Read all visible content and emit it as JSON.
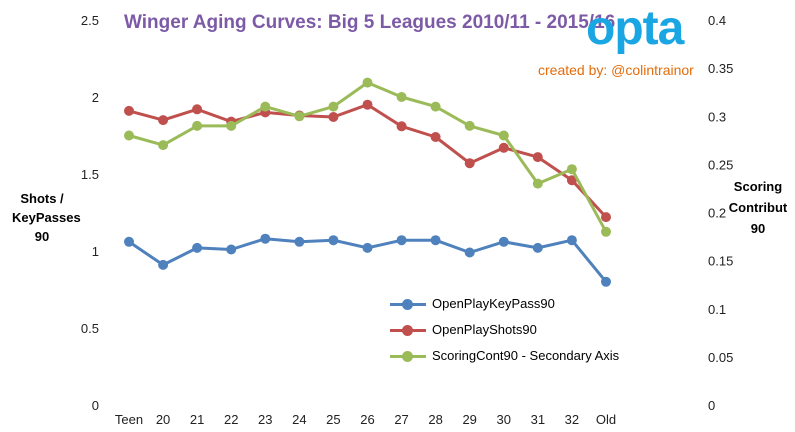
{
  "title": "Winger Aging Curves: Big 5 Leagues 2010/11 - 2015/16",
  "logo_text": "opta",
  "credit": "created by: @colintrainor",
  "colors": {
    "OpenPlayKeyPass90": "#4f81bd",
    "OpenPlayShots90": "#c0504d",
    "ScoringCont90": "#9bbb59",
    "title": "#7c5aa6",
    "credit": "#e46c0a",
    "logo": "#19a6e3"
  },
  "chart_data": {
    "type": "line",
    "title": "Winger Aging Curves: Big 5 Leagues 2010/11 - 2015/16",
    "categories": [
      "Teen",
      "20",
      "21",
      "22",
      "23",
      "24",
      "25",
      "26",
      "27",
      "28",
      "29",
      "30",
      "31",
      "32",
      "Old"
    ],
    "ylabel_left_lines": [
      "Shots /",
      "KeyPasses",
      "90"
    ],
    "ylabel_right_lines": [
      "Scoring",
      "Contribut",
      "90"
    ],
    "ylim": [
      0,
      2.5
    ],
    "y_ticks": [
      "0",
      "0.5",
      "1",
      "1.5",
      "2",
      "2.5"
    ],
    "y2lim": [
      0,
      0.4
    ],
    "y2_ticks": [
      "0",
      "0.05",
      "0.1",
      "0.15",
      "0.2",
      "0.25",
      "0.3",
      "0.35",
      "0.4"
    ],
    "grid": false,
    "legend_position": "bottom-center",
    "series": [
      {
        "name": "OpenPlayKeyPass90",
        "axis": "primary",
        "values": [
          1.06,
          0.91,
          1.02,
          1.01,
          1.08,
          1.06,
          1.07,
          1.02,
          1.07,
          1.07,
          0.99,
          1.06,
          1.02,
          1.07,
          0.8
        ]
      },
      {
        "name": "OpenPlayShots90",
        "axis": "primary",
        "values": [
          1.91,
          1.85,
          1.92,
          1.84,
          1.9,
          1.88,
          1.87,
          1.95,
          1.81,
          1.74,
          1.57,
          1.67,
          1.61,
          1.46,
          1.22
        ]
      },
      {
        "name": "ScoringCont90 - Secondary Axis",
        "axis": "secondary",
        "values": [
          0.28,
          0.27,
          0.29,
          0.29,
          0.31,
          0.3,
          0.31,
          0.335,
          0.32,
          0.31,
          0.29,
          0.28,
          0.23,
          0.245,
          0.18
        ]
      }
    ]
  }
}
